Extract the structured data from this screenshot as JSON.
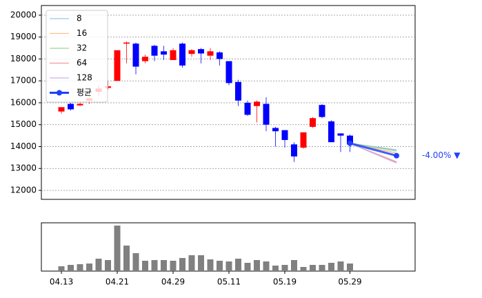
{
  "chart_data": [
    {
      "type": "candlestick",
      "x": [
        0,
        1,
        2,
        3,
        4,
        5,
        6,
        7,
        8,
        9,
        10,
        11,
        12,
        13,
        14,
        15,
        16,
        17,
        18,
        19,
        20,
        21,
        22,
        23,
        24,
        25,
        26,
        27,
        28,
        29,
        30,
        31
      ],
      "open": [
        15600,
        15950,
        15880,
        16100,
        16500,
        16680,
        17000,
        18700,
        18700,
        17900,
        18600,
        18350,
        17950,
        18700,
        18230,
        18450,
        18150,
        18300,
        17900,
        16950,
        16000,
        15850,
        15950,
        14850,
        14750,
        14100,
        13950,
        14900,
        15900,
        15150,
        14600,
        14500
      ],
      "high": [
        15800,
        16000,
        16000,
        16300,
        16800,
        17000,
        18400,
        18800,
        18750,
        18200,
        18650,
        18600,
        18500,
        18750,
        18450,
        18500,
        18500,
        18350,
        17900,
        17050,
        16100,
        16100,
        16250,
        14900,
        14750,
        14200,
        14650,
        15350,
        15950,
        15200,
        14600,
        14550
      ],
      "low": [
        15500,
        15650,
        15850,
        15950,
        16300,
        16600,
        17000,
        17800,
        17300,
        17800,
        17900,
        17950,
        17950,
        17600,
        18100,
        17800,
        17950,
        17700,
        16800,
        15850,
        15400,
        15100,
        14700,
        14000,
        13950,
        13300,
        13900,
        14850,
        15300,
        14200,
        13750,
        13750
      ],
      "close": [
        15800,
        15700,
        15950,
        16200,
        16650,
        16750,
        18400,
        18750,
        17650,
        18100,
        18150,
        18200,
        18400,
        17700,
        18400,
        18250,
        18350,
        18000,
        16900,
        16100,
        15450,
        16050,
        15000,
        14700,
        14300,
        13550,
        14650,
        15300,
        15350,
        14200,
        14500,
        14100
      ],
      "up_color": "#ff0000",
      "down_color": "#0000ff",
      "xlim": [
        -2.15,
        38.0
      ],
      "ylim": [
        11590,
        20440
      ],
      "yticks": [
        12000,
        13000,
        14000,
        15000,
        16000,
        17000,
        18000,
        19000,
        20000
      ],
      "grid": true,
      "legend": "upper left",
      "series": [
        {
          "name": "8",
          "color": "#9ec3ea",
          "x": [
            31,
            36
          ],
          "values": [
            14150,
            13850
          ]
        },
        {
          "name": "16",
          "color": "#ffc08a",
          "x": [
            31,
            36
          ],
          "values": [
            14150,
            13700
          ]
        },
        {
          "name": "32",
          "color": "#98d898",
          "x": [
            31,
            36
          ],
          "values": [
            14150,
            13800
          ]
        },
        {
          "name": "64",
          "color": "#f09a9a",
          "x": [
            31,
            36
          ],
          "values": [
            14150,
            13300
          ]
        },
        {
          "name": "128",
          "color": "#c9b3e0",
          "x": [
            31,
            36
          ],
          "values": [
            14150,
            13250
          ]
        },
        {
          "name": "평균",
          "color": "#1f3fff",
          "x": [
            31,
            36
          ],
          "values": [
            14150,
            13584
          ]
        }
      ],
      "annotation": "-4.00% ▼"
    },
    {
      "type": "bar",
      "x": [
        0,
        1,
        2,
        3,
        4,
        5,
        6,
        7,
        8,
        9,
        10,
        11,
        12,
        13,
        14,
        15,
        16,
        17,
        18,
        19,
        20,
        21,
        22,
        23,
        24,
        25,
        26,
        27,
        28,
        29,
        30,
        31
      ],
      "values": [
        7,
        9,
        10,
        11,
        18,
        16,
        66,
        37,
        26,
        15,
        16,
        16,
        15,
        19,
        23,
        23,
        17,
        15,
        14,
        18,
        12,
        16,
        14,
        8,
        9,
        16,
        6,
        9,
        9,
        12,
        14,
        11
      ],
      "color": "#808080",
      "xlim": [
        -2.15,
        38.0
      ],
      "ylim": [
        0,
        70
      ],
      "xticks": [
        {
          "value": 0,
          "label": "04.13"
        },
        {
          "value": 6,
          "label": "04.21"
        },
        {
          "value": 12,
          "label": "04.29"
        },
        {
          "value": 18,
          "label": "05.11"
        },
        {
          "value": 24,
          "label": "05.19"
        },
        {
          "value": 31,
          "label": "05.29"
        }
      ]
    }
  ]
}
